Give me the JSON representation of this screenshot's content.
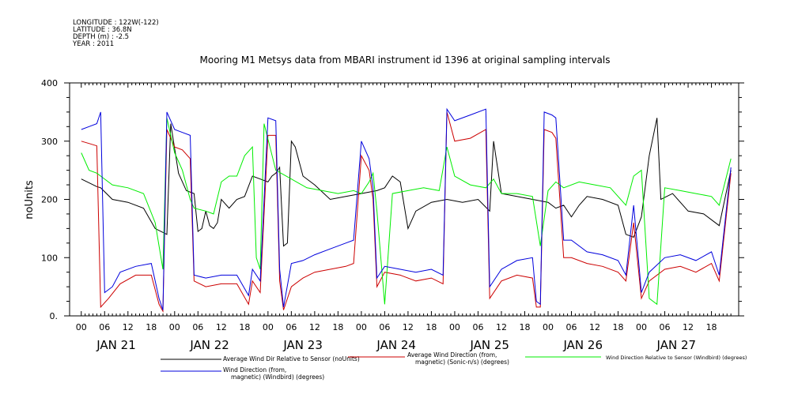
{
  "header": {
    "meta_lines": [
      "LONGITUDE : 122W(-122)",
      "LATITUDE : 36.8N",
      "DEPTH (m) : -2.5",
      "YEAR : 2011"
    ]
  },
  "chart_data": {
    "type": "line",
    "title": "Mooring M1 Metsys data from MBARI instrument id 1396 at original sampling intervals",
    "ylabel": "noUnits",
    "xlabel": "",
    "ylim": [
      0,
      400
    ],
    "yticks": [
      "0.",
      "100",
      "200",
      "300",
      "400"
    ],
    "xlim_hours": [
      -3,
      169
    ],
    "xticks_hour_labels": [
      "00",
      "06",
      "12",
      "18",
      "00",
      "06",
      "12",
      "18",
      "00",
      "06",
      "12",
      "18",
      "00",
      "06",
      "12",
      "18",
      "00",
      "06",
      "12",
      "18",
      "00",
      "06",
      "12",
      "18",
      "00",
      "06",
      "12",
      "18"
    ],
    "day_labels": [
      "JAN 21",
      "JAN 22",
      "JAN 23",
      "JAN 24",
      "JAN 25",
      "JAN 26",
      "JAN 27"
    ],
    "grid": false,
    "series": [
      {
        "name": "Average Wind Dir Relative to Sensor (noUnits)",
        "color": "#000000",
        "points": [
          [
            0,
            235
          ],
          [
            4,
            222
          ],
          [
            5,
            220
          ],
          [
            8,
            200
          ],
          [
            12,
            195
          ],
          [
            16,
            185
          ],
          [
            19,
            150
          ],
          [
            22,
            140
          ],
          [
            23,
            330
          ],
          [
            25,
            245
          ],
          [
            27,
            215
          ],
          [
            29,
            210
          ],
          [
            30,
            145
          ],
          [
            31,
            150
          ],
          [
            32,
            180
          ],
          [
            33,
            155
          ],
          [
            34,
            150
          ],
          [
            35,
            160
          ],
          [
            36,
            200
          ],
          [
            38,
            185
          ],
          [
            40,
            200
          ],
          [
            42,
            205
          ],
          [
            44,
            240
          ],
          [
            46,
            235
          ],
          [
            48,
            230
          ],
          [
            49,
            240
          ],
          [
            50,
            245
          ],
          [
            51,
            255
          ],
          [
            52,
            120
          ],
          [
            53,
            125
          ],
          [
            54,
            300
          ],
          [
            55,
            290
          ],
          [
            57,
            240
          ],
          [
            60,
            225
          ],
          [
            64,
            200
          ],
          [
            68,
            205
          ],
          [
            72,
            210
          ],
          [
            76,
            215
          ],
          [
            78,
            220
          ],
          [
            79,
            230
          ],
          [
            80,
            240
          ],
          [
            82,
            230
          ],
          [
            84,
            150
          ],
          [
            86,
            180
          ],
          [
            90,
            195
          ],
          [
            94,
            200
          ],
          [
            98,
            195
          ],
          [
            102,
            200
          ],
          [
            105,
            180
          ],
          [
            106,
            300
          ],
          [
            108,
            210
          ],
          [
            112,
            205
          ],
          [
            116,
            200
          ],
          [
            120,
            195
          ],
          [
            122,
            185
          ],
          [
            124,
            190
          ],
          [
            126,
            170
          ],
          [
            128,
            190
          ],
          [
            130,
            205
          ],
          [
            134,
            200
          ],
          [
            138,
            190
          ],
          [
            140,
            140
          ],
          [
            142,
            135
          ],
          [
            144,
            170
          ],
          [
            146,
            275
          ],
          [
            148,
            340
          ],
          [
            149,
            200
          ],
          [
            152,
            210
          ],
          [
            156,
            180
          ],
          [
            160,
            175
          ],
          [
            164,
            155
          ],
          [
            167,
            250
          ]
        ]
      },
      {
        "name": "Average Wind Direction (from, magnetic) (Sonic-n/s) (degrees)",
        "color": "#cc0000",
        "points": [
          [
            0,
            300
          ],
          [
            2,
            296
          ],
          [
            4,
            292
          ],
          [
            5,
            15
          ],
          [
            7,
            30
          ],
          [
            10,
            55
          ],
          [
            14,
            70
          ],
          [
            18,
            70
          ],
          [
            20,
            20
          ],
          [
            21,
            8
          ],
          [
            22,
            320
          ],
          [
            24,
            290
          ],
          [
            26,
            285
          ],
          [
            28,
            270
          ],
          [
            29,
            60
          ],
          [
            32,
            50
          ],
          [
            36,
            55
          ],
          [
            40,
            55
          ],
          [
            43,
            20
          ],
          [
            44,
            60
          ],
          [
            46,
            40
          ],
          [
            48,
            310
          ],
          [
            50,
            310
          ],
          [
            51,
            60
          ],
          [
            52,
            10
          ],
          [
            54,
            50
          ],
          [
            57,
            65
          ],
          [
            60,
            75
          ],
          [
            64,
            80
          ],
          [
            68,
            85
          ],
          [
            70,
            90
          ],
          [
            72,
            275
          ],
          [
            74,
            250
          ],
          [
            75,
            200
          ],
          [
            76,
            50
          ],
          [
            78,
            75
          ],
          [
            82,
            70
          ],
          [
            86,
            60
          ],
          [
            90,
            65
          ],
          [
            93,
            55
          ],
          [
            94,
            350
          ],
          [
            96,
            300
          ],
          [
            100,
            305
          ],
          [
            104,
            320
          ],
          [
            105,
            30
          ],
          [
            108,
            60
          ],
          [
            112,
            70
          ],
          [
            116,
            65
          ],
          [
            117,
            15
          ],
          [
            118,
            15
          ],
          [
            119,
            320
          ],
          [
            121,
            315
          ],
          [
            122,
            305
          ],
          [
            124,
            100
          ],
          [
            126,
            100
          ],
          [
            130,
            90
          ],
          [
            134,
            85
          ],
          [
            138,
            75
          ],
          [
            140,
            60
          ],
          [
            142,
            160
          ],
          [
            144,
            30
          ],
          [
            146,
            60
          ],
          [
            150,
            80
          ],
          [
            154,
            85
          ],
          [
            158,
            75
          ],
          [
            162,
            90
          ],
          [
            164,
            60
          ],
          [
            167,
            245
          ]
        ]
      },
      {
        "name": "Wind Direction Relative to Sensor (Windbird) (degrees)",
        "color": "#00ee00",
        "points": [
          [
            0,
            280
          ],
          [
            2,
            250
          ],
          [
            4,
            245
          ],
          [
            5,
            240
          ],
          [
            8,
            225
          ],
          [
            12,
            220
          ],
          [
            16,
            210
          ],
          [
            19,
            160
          ],
          [
            21,
            80
          ],
          [
            22,
            340
          ],
          [
            24,
            280
          ],
          [
            26,
            250
          ],
          [
            28,
            200
          ],
          [
            29,
            185
          ],
          [
            32,
            180
          ],
          [
            34,
            175
          ],
          [
            36,
            230
          ],
          [
            38,
            240
          ],
          [
            40,
            240
          ],
          [
            42,
            275
          ],
          [
            44,
            290
          ],
          [
            45,
            100
          ],
          [
            46,
            80
          ],
          [
            47,
            330
          ],
          [
            50,
            250
          ],
          [
            54,
            235
          ],
          [
            58,
            220
          ],
          [
            62,
            215
          ],
          [
            66,
            210
          ],
          [
            70,
            215
          ],
          [
            72,
            210
          ],
          [
            74,
            230
          ],
          [
            75,
            245
          ],
          [
            76,
            180
          ],
          [
            78,
            20
          ],
          [
            80,
            210
          ],
          [
            84,
            215
          ],
          [
            88,
            220
          ],
          [
            92,
            215
          ],
          [
            94,
            290
          ],
          [
            96,
            240
          ],
          [
            100,
            225
          ],
          [
            104,
            220
          ],
          [
            106,
            235
          ],
          [
            108,
            210
          ],
          [
            112,
            210
          ],
          [
            116,
            205
          ],
          [
            118,
            120
          ],
          [
            120,
            215
          ],
          [
            122,
            230
          ],
          [
            124,
            220
          ],
          [
            128,
            230
          ],
          [
            132,
            225
          ],
          [
            136,
            220
          ],
          [
            140,
            190
          ],
          [
            142,
            240
          ],
          [
            144,
            250
          ],
          [
            146,
            30
          ],
          [
            148,
            20
          ],
          [
            150,
            220
          ],
          [
            154,
            215
          ],
          [
            158,
            210
          ],
          [
            162,
            205
          ],
          [
            164,
            190
          ],
          [
            167,
            270
          ]
        ]
      },
      {
        "name": "Wind Direction (from, magnetic) (Windbird) (degrees)",
        "color": "#0000dd",
        "points": [
          [
            0,
            320
          ],
          [
            2,
            325
          ],
          [
            4,
            330
          ],
          [
            5,
            350
          ],
          [
            6,
            40
          ],
          [
            8,
            50
          ],
          [
            10,
            75
          ],
          [
            14,
            85
          ],
          [
            18,
            90
          ],
          [
            20,
            30
          ],
          [
            21,
            10
          ],
          [
            22,
            350
          ],
          [
            24,
            320
          ],
          [
            26,
            315
          ],
          [
            28,
            310
          ],
          [
            29,
            70
          ],
          [
            32,
            65
          ],
          [
            36,
            70
          ],
          [
            40,
            70
          ],
          [
            43,
            35
          ],
          [
            44,
            80
          ],
          [
            46,
            60
          ],
          [
            48,
            340
          ],
          [
            50,
            335
          ],
          [
            51,
            80
          ],
          [
            52,
            15
          ],
          [
            54,
            90
          ],
          [
            57,
            95
          ],
          [
            60,
            105
          ],
          [
            64,
            115
          ],
          [
            68,
            125
          ],
          [
            70,
            130
          ],
          [
            72,
            300
          ],
          [
            74,
            270
          ],
          [
            75,
            220
          ],
          [
            76,
            65
          ],
          [
            78,
            85
          ],
          [
            82,
            80
          ],
          [
            86,
            75
          ],
          [
            90,
            80
          ],
          [
            93,
            70
          ],
          [
            94,
            355
          ],
          [
            96,
            335
          ],
          [
            100,
            345
          ],
          [
            104,
            355
          ],
          [
            105,
            50
          ],
          [
            108,
            80
          ],
          [
            112,
            95
          ],
          [
            116,
            100
          ],
          [
            117,
            25
          ],
          [
            118,
            20
          ],
          [
            119,
            350
          ],
          [
            121,
            345
          ],
          [
            122,
            340
          ],
          [
            124,
            130
          ],
          [
            126,
            130
          ],
          [
            130,
            110
          ],
          [
            134,
            105
          ],
          [
            138,
            95
          ],
          [
            140,
            70
          ],
          [
            142,
            190
          ],
          [
            144,
            40
          ],
          [
            146,
            75
          ],
          [
            150,
            100
          ],
          [
            154,
            105
          ],
          [
            158,
            95
          ],
          [
            162,
            110
          ],
          [
            164,
            70
          ],
          [
            167,
            255
          ]
        ]
      }
    ]
  },
  "legend": {
    "entries": [
      {
        "label_lines": [
          "Average Wind Dir Relative to Sensor (noUnits)"
        ],
        "color": "#000000"
      },
      {
        "label_lines": [
          "Average Wind Direction (from,",
          "magnetic) (Sonic-n/s) (degrees)"
        ],
        "color": "#cc0000"
      },
      {
        "label_lines": [
          "Wind Direction Relative to Sensor (Windbird) (degrees)"
        ],
        "color": "#00ee00"
      },
      {
        "label_lines": [
          "Wind Direction (from,",
          "magnetic) (Windbird) (degrees)"
        ],
        "color": "#0000dd"
      }
    ]
  }
}
